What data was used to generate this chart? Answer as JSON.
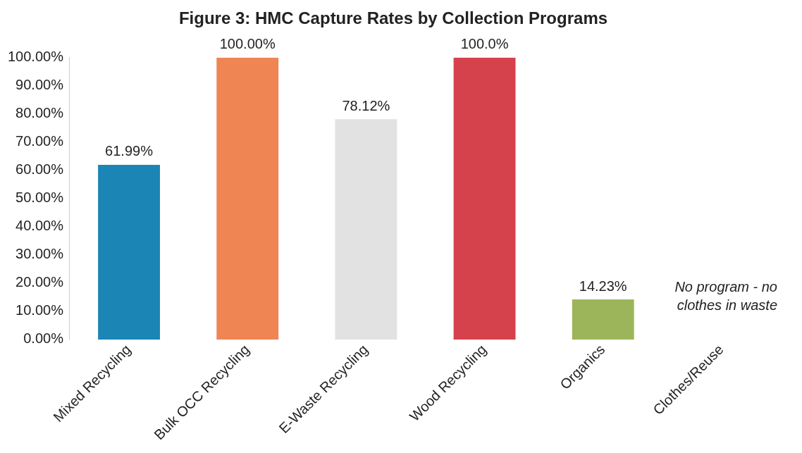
{
  "chart_data": {
    "type": "bar",
    "title": "Figure 3: HMC Capture Rates by Collection Programs",
    "categories": [
      "Mixed Recycling",
      "Bulk OCC Recycling",
      "E-Waste Recycling",
      "Wood Recycling",
      "Organics",
      "Clothes/Reuse"
    ],
    "values": [
      61.99,
      100,
      78.12,
      100,
      14.23,
      null
    ],
    "colors": [
      "#1b86b6",
      "#ee8553",
      "#e2e2e2",
      "#d5424c",
      "#9db55a",
      null
    ],
    "value_labels": [
      "61.99%",
      "100.00%",
      "78.12%",
      "100.0%",
      "14.23%",
      null
    ],
    "ylim": [
      0,
      100
    ],
    "yticks": [
      {
        "value": 0,
        "label": "0.00%"
      },
      {
        "value": 10,
        "label": "10.00%"
      },
      {
        "value": 20,
        "label": "20.00%"
      },
      {
        "value": 30,
        "label": "30.00%"
      },
      {
        "value": 40,
        "label": "40.00%"
      },
      {
        "value": 50,
        "label": "50.00%"
      },
      {
        "value": 60,
        "label": "60.00%"
      },
      {
        "value": 70,
        "label": "70.00%"
      },
      {
        "value": 80,
        "label": "80.00%"
      },
      {
        "value": 90,
        "label": "90.00%"
      },
      {
        "value": 100,
        "label": "100.00%"
      }
    ],
    "annotations": [
      "No program - no clothes in waste"
    ],
    "grid": false,
    "legend": false
  }
}
